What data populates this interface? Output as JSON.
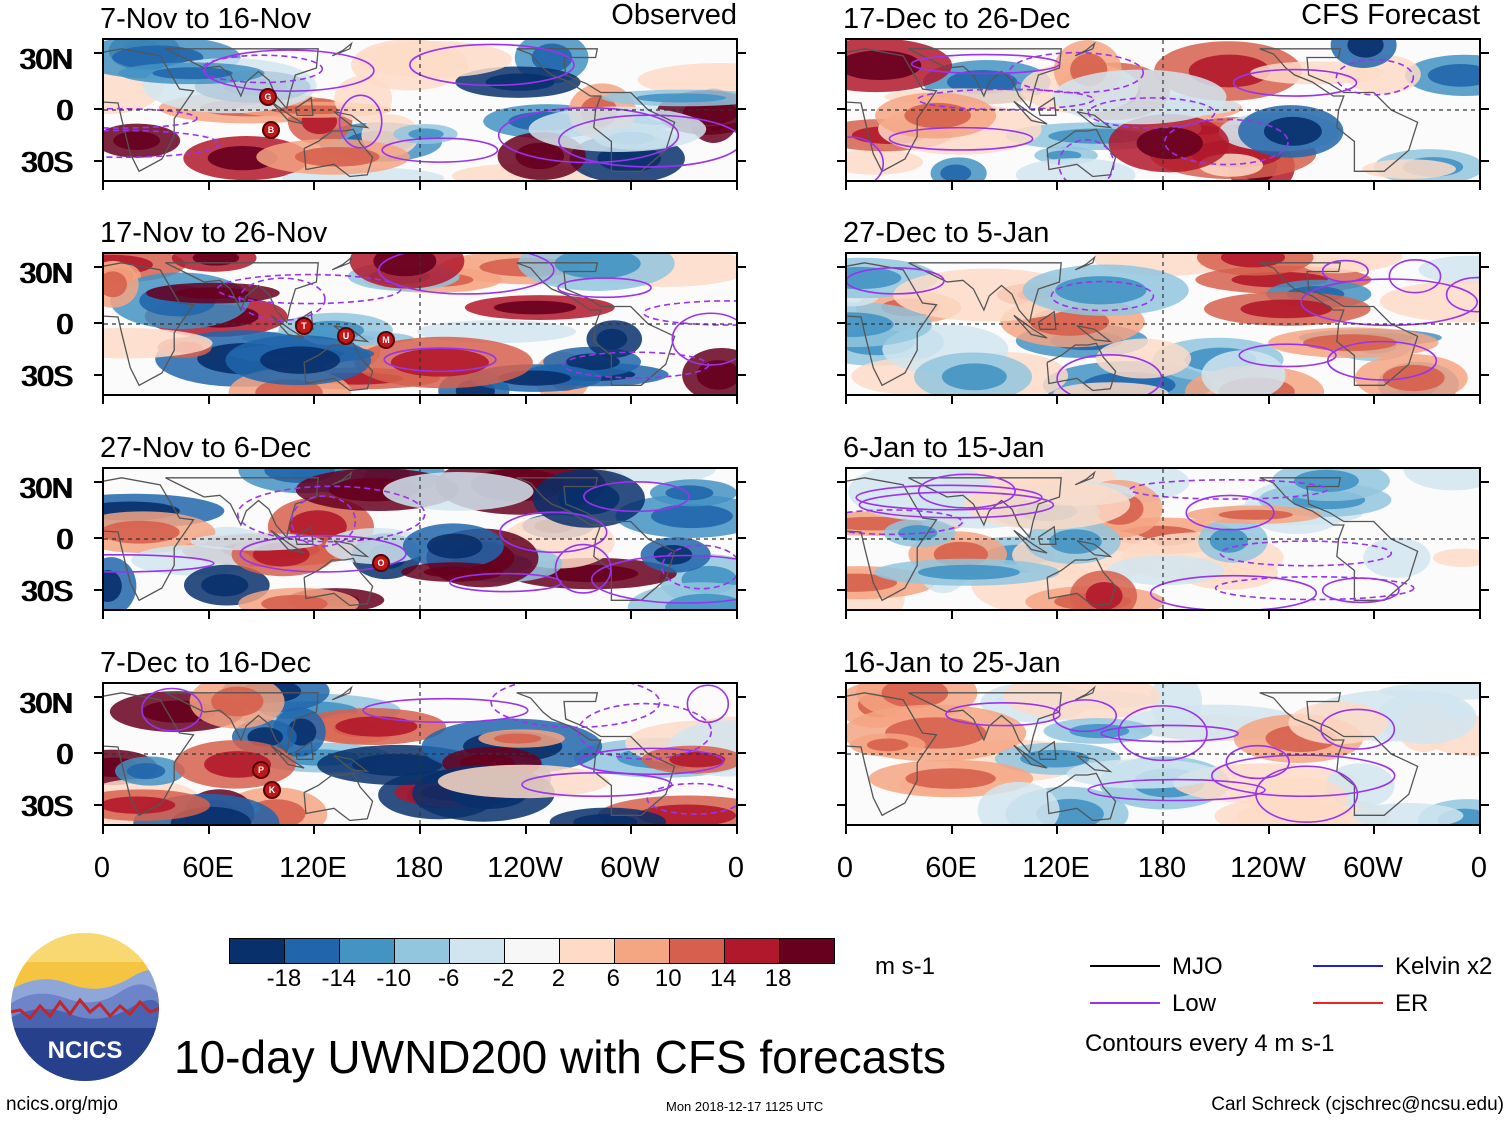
{
  "header": {
    "left_heading": "Observed",
    "right_heading": "CFS Forecast"
  },
  "panels_observed": [
    {
      "period": "7-Nov to 16-Nov",
      "storms": [
        "G",
        "B"
      ]
    },
    {
      "period": "17-Nov to 26-Nov",
      "storms": [
        "T",
        "U",
        "M"
      ]
    },
    {
      "period": "27-Nov to 6-Dec",
      "storms": [
        "O"
      ]
    },
    {
      "period": "7-Dec to 16-Dec",
      "storms": [
        "P",
        "K"
      ]
    }
  ],
  "panels_forecast": [
    {
      "period": "17-Dec to 26-Dec"
    },
    {
      "period": "27-Dec to 5-Jan"
    },
    {
      "period": "6-Jan to 15-Jan"
    },
    {
      "period": "16-Jan to 25-Jan"
    }
  ],
  "lat_labels": [
    "30N",
    "0",
    "30S"
  ],
  "lon_labels": [
    "0",
    "60E",
    "120E",
    "180",
    "120W",
    "60W",
    "0"
  ],
  "colorbar": {
    "colors": [
      "#08306b",
      "#2166ac",
      "#4393c3",
      "#92c5de",
      "#d1e5f0",
      "#f7f7f7",
      "#fddbc7",
      "#f4a582",
      "#d6604d",
      "#b2182b",
      "#67001f"
    ],
    "labels": [
      "-18",
      "-14",
      "-10",
      "-6",
      "-2",
      "2",
      "6",
      "10",
      "14",
      "18"
    ],
    "units": "m s-1"
  },
  "legend": {
    "items": [
      {
        "label": "MJO",
        "color": "#000000"
      },
      {
        "label": "Kelvin x2",
        "color": "#2222cc"
      },
      {
        "label": "Low",
        "color": "#9933ee"
      },
      {
        "label": "ER",
        "color": "#ee2222"
      }
    ],
    "note": "Contours every 4 m s-1"
  },
  "logo": {
    "text": "NCICS"
  },
  "title": "10-day UWND200 with CFS forecasts",
  "footer": {
    "url": "ncics.org/mjo",
    "timestamp": "Mon 2018-12-17 1125 UTC",
    "credit": "Carl Schreck (cjschrec@ncsu.edu)"
  }
}
